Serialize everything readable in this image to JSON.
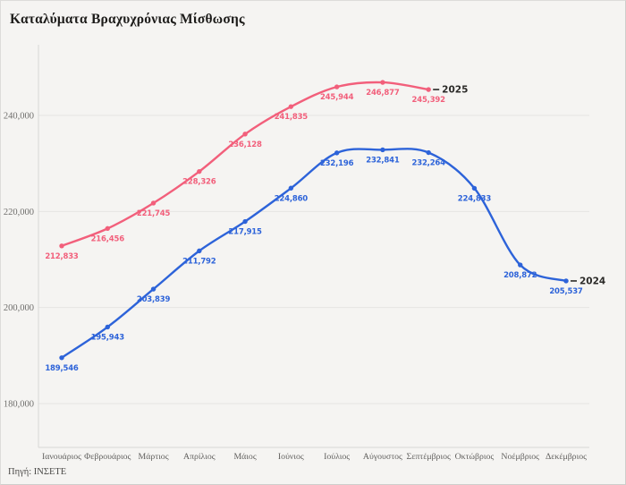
{
  "header": {
    "title": "Καταλύματα Βραχυχρόνιας Μίσθωσης"
  },
  "footer": {
    "source": "Πηγή: ΙΝΣΕΤΕ"
  },
  "colors": {
    "background": "#f5f4f2",
    "grid": "#e5e4e2",
    "axis": "#d8d7d5",
    "tick_text": "#6f6e6c",
    "month_text": "#605f5d",
    "year_label": "#2b2a28",
    "series_2025": "#f25f7b",
    "series_2024": "#2d63d9"
  },
  "chart_data": {
    "type": "line",
    "title": "Καταλύματα Βραχυχρόνιας Μίσθωσης",
    "xlabel": "",
    "ylabel": "",
    "categories": [
      "Ιανουάριος",
      "Φεβρουάριος",
      "Μάρτιος",
      "Απρίλιος",
      "Μάιος",
      "Ιούνιος",
      "Ιούλιος",
      "Αύγουστος",
      "Σεπτέμβριος",
      "Οκτώβριος",
      "Νοέμβριος",
      "Δεκέμβριος"
    ],
    "series": [
      {
        "name": "2025",
        "color": "#f25f7b",
        "values": [
          212833,
          216456,
          221745,
          228326,
          236128,
          241835,
          245944,
          246877,
          245392
        ]
      },
      {
        "name": "2024",
        "color": "#2d63d9",
        "values": [
          189546,
          195943,
          203839,
          211792,
          217915,
          224860,
          232196,
          232841,
          232264,
          224833,
          208872,
          205537
        ]
      }
    ],
    "yticks": [
      240000,
      220000,
      200000,
      180000
    ],
    "ylim": [
      170800,
      254700
    ],
    "grid": true,
    "value_labels": true,
    "legend_position": "end-of-line",
    "source": "Πηγή: ΙΝΣΕΤΕ"
  }
}
